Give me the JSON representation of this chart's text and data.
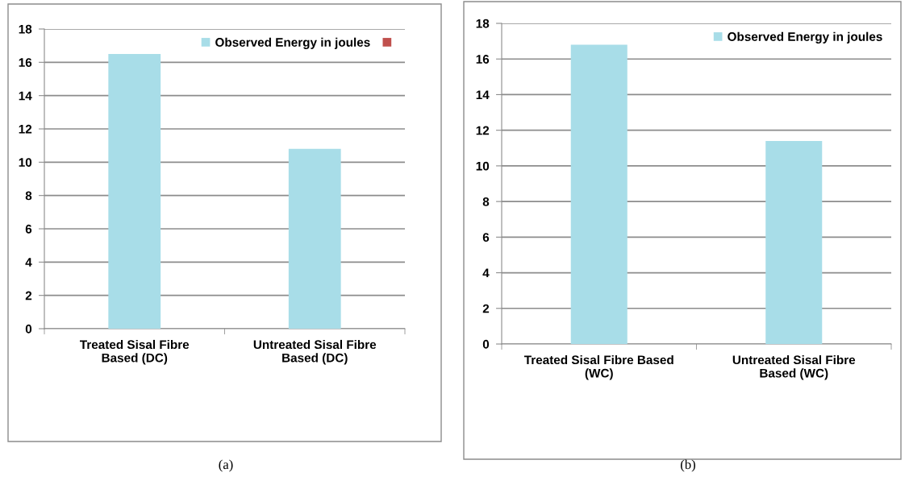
{
  "chart_data": [
    {
      "type": "bar",
      "categories": [
        "Treated Sisal Fibre Based (DC)",
        "Untreated Sisal Fibre Based (DC)"
      ],
      "series": [
        {
          "name": "Observed Energy in joules",
          "color": "#a8dde8",
          "values": [
            16.5,
            10.8
          ]
        },
        {
          "color": "#c0504d",
          "values": [
            null,
            null
          ]
        }
      ],
      "ylim": [
        0,
        18
      ],
      "yticks": [
        0,
        2,
        4,
        6,
        8,
        10,
        12,
        14,
        16,
        18
      ],
      "grid": "y",
      "legend": "top right",
      "annotations": [
        "(a)"
      ]
    },
    {
      "type": "bar",
      "categories": [
        "Treated Sisal Fibre Based (WC)",
        "Untreated Sisal Fibre Based (WC)"
      ],
      "series": [
        {
          "name": "Observed Energy in joules",
          "color": "#a8dde8",
          "values": [
            16.8,
            11.4
          ]
        }
      ],
      "ylim": [
        0,
        18
      ],
      "yticks": [
        0,
        2,
        4,
        6,
        8,
        10,
        12,
        14,
        16,
        18
      ],
      "grid": "y",
      "legend": "top right",
      "annotations": [
        "(b)"
      ]
    }
  ]
}
